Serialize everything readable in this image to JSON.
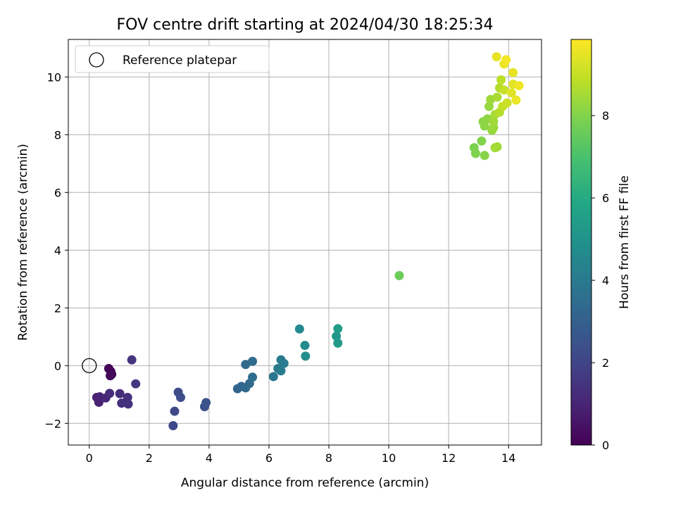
{
  "chart_data": {
    "type": "scatter",
    "title": "FOV centre drift starting at 2024/04/30 18:25:34",
    "xlabel": "Angular distance from reference (arcmin)",
    "ylabel": "Rotation from reference (arcmin)",
    "xlim": [
      -0.7,
      15.1
    ],
    "ylim": [
      -2.75,
      11.3
    ],
    "xticks": [
      0,
      2,
      4,
      6,
      8,
      10,
      12,
      14
    ],
    "yticks": [
      -2,
      0,
      2,
      4,
      6,
      8,
      10
    ],
    "grid": true,
    "legend": {
      "placement": "top-left",
      "entries": [
        "Reference platepar"
      ]
    },
    "reference_point": {
      "x": 0,
      "y": 0
    },
    "colorbar": {
      "label": "Hours from first FF file",
      "colormap": "viridis",
      "range": [
        0,
        9.85
      ],
      "ticks": [
        0,
        2,
        4,
        6,
        8
      ]
    },
    "points": [
      {
        "x": 0.65,
        "y": -0.1,
        "c": 0.1
      },
      {
        "x": 0.72,
        "y": -0.2,
        "c": 0.15
      },
      {
        "x": 0.75,
        "y": -0.3,
        "c": 0.2
      },
      {
        "x": 0.7,
        "y": -0.35,
        "c": 0.25
      },
      {
        "x": 0.25,
        "y": -1.1,
        "c": 0.9
      },
      {
        "x": 0.35,
        "y": -1.08,
        "c": 1.0
      },
      {
        "x": 0.32,
        "y": -1.27,
        "c": 0.95
      },
      {
        "x": 0.55,
        "y": -1.12,
        "c": 1.1
      },
      {
        "x": 0.68,
        "y": -0.96,
        "c": 1.2
      },
      {
        "x": 1.02,
        "y": -0.97,
        "c": 1.3
      },
      {
        "x": 1.08,
        "y": -1.3,
        "c": 1.35
      },
      {
        "x": 1.28,
        "y": -1.1,
        "c": 1.4
      },
      {
        "x": 1.3,
        "y": -1.33,
        "c": 1.45
      },
      {
        "x": 1.42,
        "y": 0.2,
        "c": 1.5
      },
      {
        "x": 1.55,
        "y": -0.63,
        "c": 1.6
      },
      {
        "x": 2.8,
        "y": -2.08,
        "c": 2.1
      },
      {
        "x": 2.85,
        "y": -1.58,
        "c": 2.15
      },
      {
        "x": 2.97,
        "y": -0.92,
        "c": 2.2
      },
      {
        "x": 3.05,
        "y": -1.1,
        "c": 2.25
      },
      {
        "x": 3.85,
        "y": -1.42,
        "c": 2.45
      },
      {
        "x": 3.9,
        "y": -1.28,
        "c": 2.5
      },
      {
        "x": 4.95,
        "y": -0.8,
        "c": 3.2
      },
      {
        "x": 5.08,
        "y": -0.72,
        "c": 3.25
      },
      {
        "x": 5.22,
        "y": -0.77,
        "c": 3.3
      },
      {
        "x": 5.35,
        "y": -0.62,
        "c": 3.35
      },
      {
        "x": 5.22,
        "y": 0.04,
        "c": 3.4
      },
      {
        "x": 5.45,
        "y": 0.15,
        "c": 3.45
      },
      {
        "x": 5.45,
        "y": -0.4,
        "c": 3.5
      },
      {
        "x": 6.15,
        "y": -0.38,
        "c": 3.9
      },
      {
        "x": 6.3,
        "y": -0.1,
        "c": 3.95
      },
      {
        "x": 6.4,
        "y": 0.2,
        "c": 4.0
      },
      {
        "x": 6.4,
        "y": -0.18,
        "c": 4.05
      },
      {
        "x": 6.5,
        "y": 0.08,
        "c": 4.1
      },
      {
        "x": 7.02,
        "y": 1.27,
        "c": 4.6
      },
      {
        "x": 7.2,
        "y": 0.7,
        "c": 4.7
      },
      {
        "x": 7.22,
        "y": 0.33,
        "c": 4.75
      },
      {
        "x": 8.25,
        "y": 1.02,
        "c": 5.2
      },
      {
        "x": 8.3,
        "y": 1.28,
        "c": 5.4
      },
      {
        "x": 8.3,
        "y": 0.78,
        "c": 5.3
      },
      {
        "x": 10.35,
        "y": 3.12,
        "c": 7.6
      },
      {
        "x": 12.85,
        "y": 7.55,
        "c": 7.9
      },
      {
        "x": 12.9,
        "y": 7.35,
        "c": 7.95
      },
      {
        "x": 13.1,
        "y": 7.78,
        "c": 8.0
      },
      {
        "x": 13.2,
        "y": 7.28,
        "c": 8.05
      },
      {
        "x": 13.15,
        "y": 8.45,
        "c": 8.1
      },
      {
        "x": 13.2,
        "y": 8.3,
        "c": 8.15
      },
      {
        "x": 13.3,
        "y": 8.55,
        "c": 8.2
      },
      {
        "x": 13.35,
        "y": 8.98,
        "c": 8.3
      },
      {
        "x": 13.45,
        "y": 8.15,
        "c": 8.3
      },
      {
        "x": 13.5,
        "y": 8.25,
        "c": 8.35
      },
      {
        "x": 13.4,
        "y": 9.22,
        "c": 8.4
      },
      {
        "x": 13.5,
        "y": 8.45,
        "c": 8.45
      },
      {
        "x": 13.55,
        "y": 7.55,
        "c": 8.45
      },
      {
        "x": 13.62,
        "y": 7.58,
        "c": 8.5
      },
      {
        "x": 13.55,
        "y": 8.7,
        "c": 8.55
      },
      {
        "x": 13.62,
        "y": 9.3,
        "c": 8.6
      },
      {
        "x": 13.7,
        "y": 9.62,
        "c": 8.7
      },
      {
        "x": 13.7,
        "y": 8.78,
        "c": 8.75
      },
      {
        "x": 13.75,
        "y": 9.9,
        "c": 8.85
      },
      {
        "x": 13.8,
        "y": 8.98,
        "c": 8.95
      },
      {
        "x": 13.85,
        "y": 9.55,
        "c": 9.0
      },
      {
        "x": 13.95,
        "y": 9.1,
        "c": 9.1
      },
      {
        "x": 13.6,
        "y": 10.7,
        "c": 9.5
      },
      {
        "x": 13.85,
        "y": 10.45,
        "c": 9.6
      },
      {
        "x": 13.92,
        "y": 10.6,
        "c": 9.7
      },
      {
        "x": 14.15,
        "y": 10.15,
        "c": 9.5
      },
      {
        "x": 14.1,
        "y": 9.45,
        "c": 9.4
      },
      {
        "x": 14.15,
        "y": 9.75,
        "c": 9.45
      },
      {
        "x": 14.25,
        "y": 9.2,
        "c": 9.55
      },
      {
        "x": 14.35,
        "y": 9.7,
        "c": 9.65
      }
    ]
  }
}
